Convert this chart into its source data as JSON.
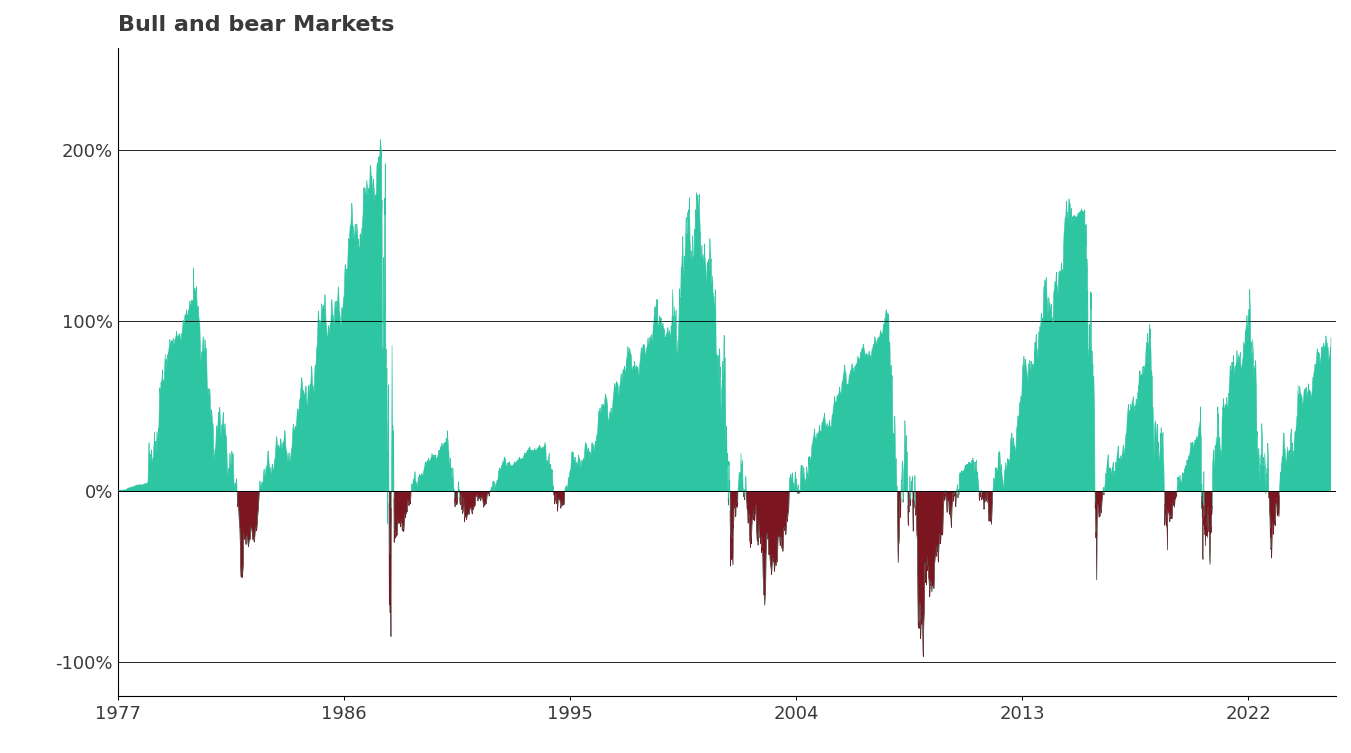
{
  "title": "Bull and bear Markets",
  "title_fontsize": 16,
  "title_color": "#3a3a3a",
  "background_color": "#ffffff",
  "bull_color": "#2dc5a2",
  "bear_color": "#7b1520",
  "yticks": [
    -100,
    0,
    100,
    200
  ],
  "ytick_labels": [
    "-100%",
    "0%",
    "100%",
    "200%"
  ],
  "xtick_labels": [
    "1977",
    "1986",
    "1995",
    "2004",
    "2013",
    "2022"
  ],
  "xtick_years": [
    1977,
    1986,
    1995,
    2004,
    2013,
    2022
  ],
  "ylim": [
    -120,
    260
  ],
  "xlim_start": 1977.0,
  "xlim_end": 2025.5,
  "grid_color": "#000000",
  "grid_alpha": 1.0,
  "grid_linewidth": 0.6,
  "seed": 42
}
